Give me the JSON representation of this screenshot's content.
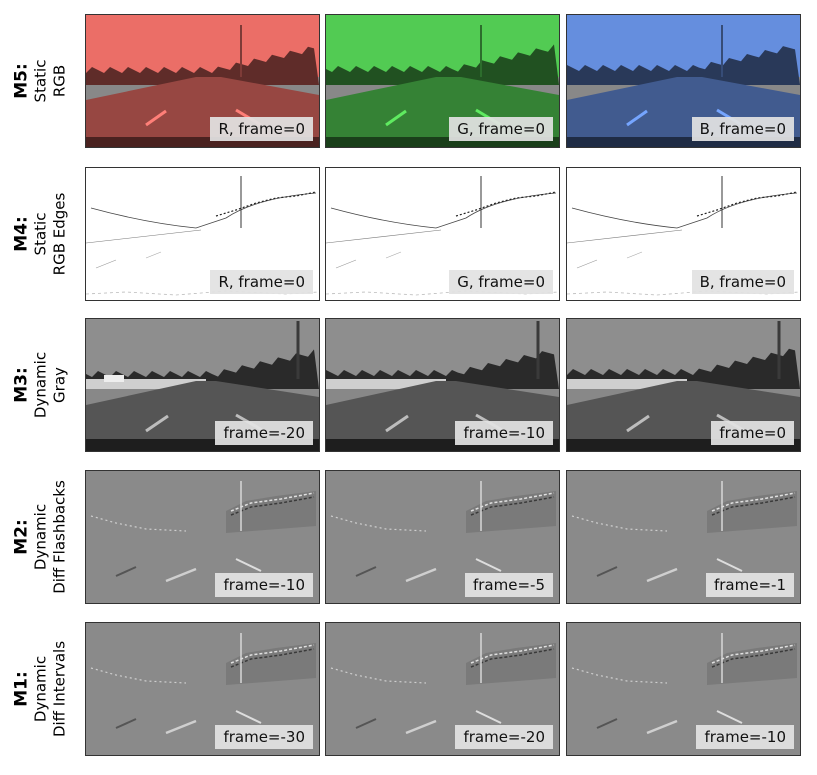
{
  "rows": [
    {
      "model": "M5:",
      "sub1": "Static",
      "sub2": "RGB",
      "style": "rgb",
      "panels": [
        {
          "label": "R, frame=0",
          "tint": "#d2625c"
        },
        {
          "label": "G, frame=0",
          "tint": "#49b54a"
        },
        {
          "label": "B, frame=0",
          "tint": "#5a7fc6"
        }
      ]
    },
    {
      "model": "M4:",
      "sub1": "Static",
      "sub2": "RGB Edges",
      "style": "edges",
      "panels": [
        {
          "label": "R, frame=0"
        },
        {
          "label": "G, frame=0"
        },
        {
          "label": "B, frame=0"
        }
      ]
    },
    {
      "model": "M3:",
      "sub1": "Dynamic",
      "sub2": "Gray",
      "style": "gray",
      "panels": [
        {
          "label": "frame=-20"
        },
        {
          "label": "frame=-10"
        },
        {
          "label": "frame=0"
        }
      ]
    },
    {
      "model": "M2:",
      "sub1": "Dynamic",
      "sub2": "Diff Flashbacks",
      "style": "diff",
      "panels": [
        {
          "label": "frame=-10"
        },
        {
          "label": "frame=-5"
        },
        {
          "label": "frame=-1"
        }
      ]
    },
    {
      "model": "M1:",
      "sub1": "Dynamic",
      "sub2": "Diff Intervals",
      "style": "diff",
      "panels": [
        {
          "label": "frame=-30"
        },
        {
          "label": "frame=-20"
        },
        {
          "label": "frame=-10"
        }
      ]
    }
  ]
}
